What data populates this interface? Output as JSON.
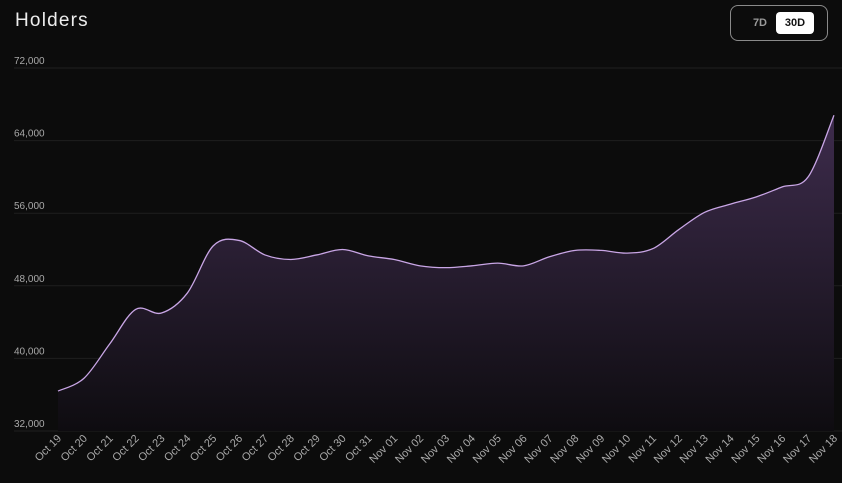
{
  "header": {
    "title": "Holders"
  },
  "range_toggle": {
    "options": [
      {
        "label": "7D",
        "active": false
      },
      {
        "label": "30D",
        "active": true
      }
    ]
  },
  "colors": {
    "line": "#c9a6e6",
    "area_top": "#3e2c4d",
    "area_bottom": "#0e0c10",
    "grid": "#1f1f1f"
  },
  "chart_data": {
    "type": "area",
    "x": [
      "Oct 19",
      "Oct 20",
      "Oct 21",
      "Oct 22",
      "Oct 23",
      "Oct 24",
      "Oct 25",
      "Oct 26",
      "Oct 27",
      "Oct 28",
      "Oct 29",
      "Oct 30",
      "Oct 31",
      "Nov 01",
      "Nov 02",
      "Nov 03",
      "Nov 04",
      "Nov 05",
      "Nov 06",
      "Nov 07",
      "Nov 08",
      "Nov 09",
      "Nov 10",
      "Nov 11",
      "Nov 12",
      "Nov 13",
      "Nov 14",
      "Nov 15",
      "Nov 16",
      "Nov 17",
      "Nov 18"
    ],
    "values": [
      36400,
      37800,
      41600,
      45400,
      45000,
      47200,
      52400,
      53000,
      51400,
      50900,
      51400,
      52000,
      51300,
      50900,
      50200,
      50000,
      50200,
      50500,
      50200,
      51200,
      51900,
      51900,
      51600,
      52100,
      54200,
      56100,
      57000,
      57800,
      58900,
      60000,
      66800
    ],
    "yticks": [
      32000,
      40000,
      48000,
      56000,
      64000,
      72000
    ],
    "ytick_labels": [
      "32,000",
      "40,000",
      "48,000",
      "56,000",
      "64,000",
      "72,000"
    ],
    "ylim": [
      32000,
      72000
    ],
    "title": "",
    "xlabel": "",
    "ylabel": "",
    "grid": true,
    "legend": "none"
  }
}
